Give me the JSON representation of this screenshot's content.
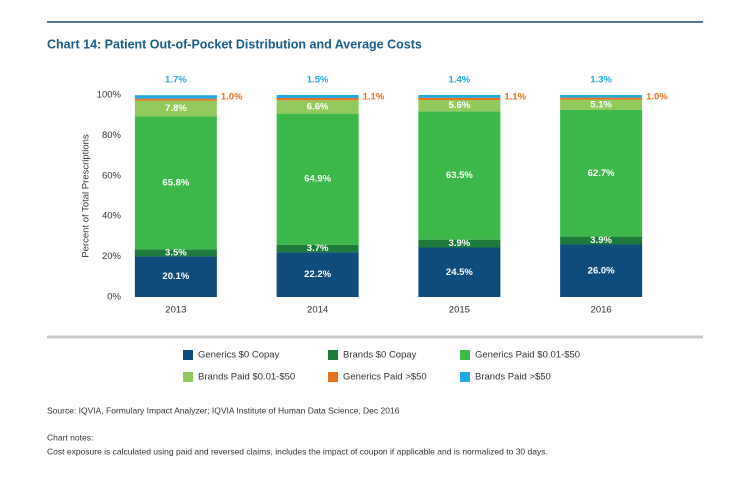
{
  "chart_data": {
    "type": "stacked_bar",
    "title": "Chart 14: Patient Out-of-Pocket Distribution and Average Costs",
    "y_label": "Percent of Total Prescriptions",
    "categories": [
      "2013",
      "2014",
      "2015",
      "2016"
    ],
    "ylim": [
      0,
      100
    ],
    "yticks": [
      {
        "value": 0,
        "label": "0%"
      },
      {
        "value": 20,
        "label": "20%"
      },
      {
        "value": 40,
        "label": "40%"
      },
      {
        "value": 60,
        "label": "60%"
      },
      {
        "value": 80,
        "label": "80%"
      },
      {
        "value": 100,
        "label": "100%"
      }
    ],
    "series": [
      {
        "name": "Generics $0 Copay",
        "color": "#0f4c7c",
        "values": [
          20.1,
          22.2,
          24.5,
          26.0
        ],
        "value_labels": [
          "20.1%",
          "22.2%",
          "24.5%",
          "26.0%"
        ]
      },
      {
        "name": "Brands $0 Copay",
        "color": "#1d7a3b",
        "values": [
          3.5,
          3.7,
          3.9,
          3.9
        ],
        "value_labels": [
          "3.5%",
          "3.7%",
          "3.9%",
          "3.9%"
        ]
      },
      {
        "name": "Generics Paid $0.01-$50",
        "color": "#3db94b",
        "values": [
          65.8,
          64.9,
          63.5,
          62.7
        ],
        "value_labels": [
          "65.8%",
          "64.9%",
          "63.5%",
          "62.7%"
        ]
      },
      {
        "name": "Brands Paid $0.01-$50",
        "color": "#92c95c",
        "values": [
          7.8,
          6.6,
          5.6,
          5.1
        ],
        "value_labels": [
          "7.8%",
          "6.6%",
          "5.6%",
          "5.1%"
        ]
      },
      {
        "name": "Generics Paid >$50",
        "color": "#e8711c",
        "values": [
          1.0,
          1.1,
          1.1,
          1.0
        ],
        "value_labels": [
          "1.0%",
          "1.1%",
          "1.1%",
          "1.0%"
        ]
      },
      {
        "name": "Brands Paid >$50",
        "color": "#22a9e1",
        "values": [
          1.7,
          1.5,
          1.4,
          1.3
        ],
        "value_labels": [
          "1.7%",
          "1.5%",
          "1.4%",
          "1.3%"
        ]
      }
    ],
    "source": "Source: IQVIA, Formulary Impact Analyzer; IQVIA Institute of Human Data Science, Dec 2016",
    "notes_title": "Chart notes:",
    "notes": "Cost exposure is calculated using paid and reversed claims, includes the impact of coupon if applicable and is normalized to 30 days."
  }
}
